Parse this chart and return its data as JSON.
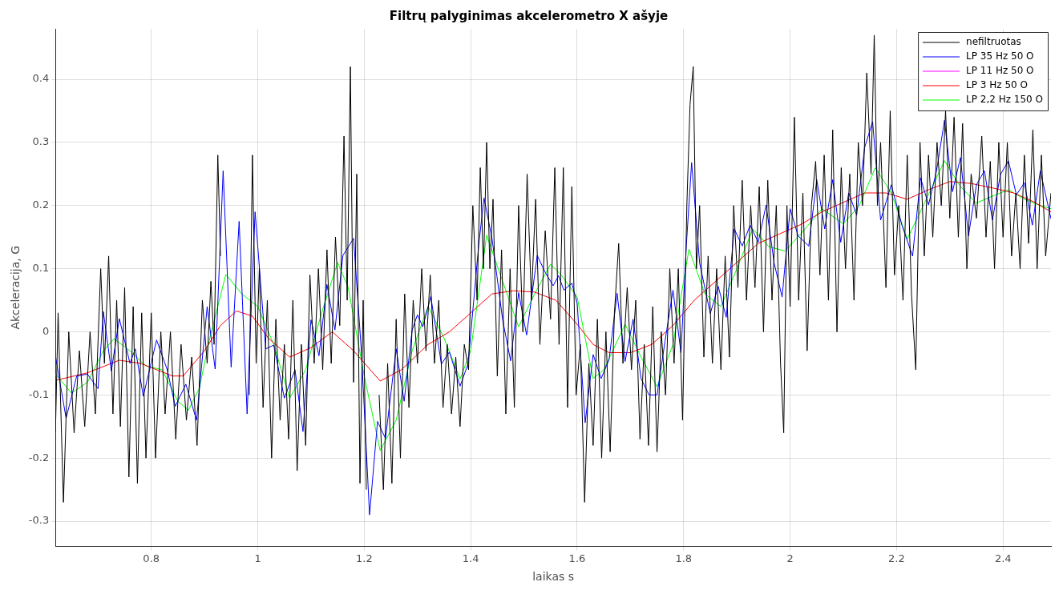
{
  "chart_data": {
    "type": "line",
    "title": "Filtrų palyginimas akcelerometro X ašyje",
    "xlabel": "laikas s",
    "ylabel": "Akceleracija, G",
    "xlim": [
      0.62,
      2.49
    ],
    "ylim": [
      -0.34,
      0.48
    ],
    "xticks": [
      0.8,
      1,
      1.2,
      1.4,
      1.6,
      1.8,
      2,
      2.2,
      2.4
    ],
    "yticks": [
      -0.3,
      -0.2,
      -0.1,
      0,
      0.1,
      0.2,
      0.3,
      0.4
    ],
    "grid": true,
    "legend": "top right",
    "marker": "none",
    "line_style": "solid",
    "series": [
      {
        "name": "nefiltruotas",
        "color": "#000000",
        "x": [
          0.62,
          0.625,
          0.635,
          0.645,
          0.655,
          0.665,
          0.675,
          0.685,
          0.695,
          0.705,
          0.712,
          0.72,
          0.728,
          0.735,
          0.742,
          0.75,
          0.758,
          0.766,
          0.774,
          0.782,
          0.79,
          0.8,
          0.808,
          0.818,
          0.826,
          0.836,
          0.846,
          0.856,
          0.866,
          0.876,
          0.886,
          0.896,
          0.905,
          0.912,
          0.918,
          0.925,
          0.93,
          0.935,
          0.94,
          0.946,
          0.951,
          0.956,
          0.961,
          0.966,
          0.972,
          0.978,
          0.984,
          0.99,
          0.997,
          1.003,
          1.01,
          1.018,
          1.026,
          1.034,
          1.042,
          1.05,
          1.058,
          1.066,
          1.074,
          1.082,
          1.09,
          1.098,
          1.106,
          1.114,
          1.122,
          1.13,
          1.138,
          1.146,
          1.154,
          1.162,
          1.168,
          1.174,
          1.18,
          1.186,
          1.192,
          1.198,
          1.204,
          1.21,
          1.216,
          1.222,
          1.228,
          1.236,
          1.244,
          1.252,
          1.26,
          1.268,
          1.276,
          1.284,
          1.292,
          1.3,
          1.308,
          1.316,
          1.324,
          1.332,
          1.34,
          1.348,
          1.356,
          1.364,
          1.372,
          1.38,
          1.388,
          1.396,
          1.404,
          1.412,
          1.418,
          1.424,
          1.43,
          1.436,
          1.442,
          1.45,
          1.458,
          1.466,
          1.474,
          1.482,
          1.49,
          1.498,
          1.506,
          1.514,
          1.522,
          1.53,
          1.54,
          1.55,
          1.558,
          1.566,
          1.574,
          1.582,
          1.59,
          1.598,
          1.606,
          1.614,
          1.622,
          1.63,
          1.638,
          1.646,
          1.654,
          1.662,
          1.67,
          1.678,
          1.686,
          1.694,
          1.702,
          1.71,
          1.718,
          1.726,
          1.734,
          1.742,
          1.75,
          1.758,
          1.766,
          1.774,
          1.782,
          1.79,
          1.798,
          1.806,
          1.812,
          1.818,
          1.824,
          1.83,
          1.838,
          1.846,
          1.854,
          1.862,
          1.87,
          1.878,
          1.886,
          1.894,
          1.902,
          1.91,
          1.918,
          1.926,
          1.934,
          1.942,
          1.95,
          1.958,
          1.966,
          1.974,
          1.982,
          1.988,
          1.994,
          2.0,
          2.008,
          2.016,
          2.024,
          2.032,
          2.04,
          2.048,
          2.056,
          2.064,
          2.072,
          2.08,
          2.088,
          2.096,
          2.104,
          2.112,
          2.12,
          2.128,
          2.136,
          2.144,
          2.152,
          2.158,
          2.164,
          2.17,
          2.18,
          2.188,
          2.196,
          2.204,
          2.212,
          2.22,
          2.228,
          2.236,
          2.244,
          2.252,
          2.26,
          2.268,
          2.276,
          2.284,
          2.292,
          2.3,
          2.308,
          2.316,
          2.324,
          2.332,
          2.34,
          2.35,
          2.36,
          2.368,
          2.376,
          2.384,
          2.392,
          2.4,
          2.408,
          2.416,
          2.424,
          2.432,
          2.44,
          2.448,
          2.456,
          2.464,
          2.472,
          2.48,
          2.49
        ],
        "values": [
          -0.16,
          0.03,
          -0.27,
          0.0,
          -0.16,
          -0.03,
          -0.15,
          0.0,
          -0.13,
          0.1,
          -0.05,
          0.12,
          -0.13,
          0.05,
          -0.15,
          0.07,
          -0.23,
          0.04,
          -0.24,
          0.03,
          -0.2,
          0.03,
          -0.2,
          0.0,
          -0.13,
          0.0,
          -0.17,
          -0.02,
          -0.14,
          -0.04,
          -0.18,
          0.05,
          -0.05,
          0.08,
          -0.02,
          0.28,
          0.12,
          null,
          null,
          null,
          null,
          null,
          null,
          null,
          null,
          null,
          -0.1,
          0.28,
          -0.05,
          0.1,
          -0.12,
          0.05,
          -0.2,
          0.02,
          -0.14,
          -0.02,
          -0.17,
          0.05,
          -0.22,
          -0.02,
          -0.18,
          0.09,
          -0.05,
          0.1,
          -0.06,
          0.13,
          -0.05,
          0.15,
          0.01,
          0.31,
          0.05,
          0.42,
          -0.08,
          0.25,
          -0.24,
          0.05,
          -0.25,
          null,
          null,
          null,
          -0.1,
          -0.25,
          -0.05,
          -0.24,
          0.02,
          -0.2,
          0.06,
          -0.12,
          0.05,
          -0.05,
          0.1,
          -0.03,
          0.09,
          -0.05,
          0.05,
          -0.12,
          -0.02,
          -0.13,
          -0.04,
          -0.15,
          -0.02,
          -0.06,
          0.2,
          0.05,
          0.26,
          0.1,
          0.3,
          0.1,
          0.21,
          -0.07,
          0.13,
          -0.13,
          0.1,
          -0.12,
          0.2,
          0.0,
          0.25,
          0.05,
          0.21,
          -0.02,
          0.16,
          0.02,
          0.26,
          -0.02,
          0.26,
          -0.12,
          0.23,
          -0.1,
          -0.02,
          -0.27,
          -0.05,
          -0.18,
          0.02,
          -0.2,
          0.0,
          -0.19,
          0.03,
          0.14,
          -0.05,
          0.07,
          -0.06,
          0.05,
          -0.17,
          -0.02,
          -0.18,
          0.04,
          -0.19,
          0.0,
          -0.1,
          0.1,
          -0.05,
          0.1,
          -0.14,
          0.2,
          0.36,
          0.42,
          0.1,
          0.2,
          -0.04,
          0.12,
          -0.05,
          0.1,
          -0.06,
          0.12,
          -0.04,
          0.2,
          0.07,
          0.24,
          0.05,
          0.2,
          0.07,
          0.23,
          0.0,
          0.24,
          0.05,
          0.2,
          -0.05,
          -0.16,
          0.2,
          0.04,
          0.34,
          0.05,
          0.22,
          -0.03,
          0.2,
          0.27,
          0.09,
          0.28,
          0.05,
          0.32,
          0.0,
          0.26,
          0.1,
          0.25,
          0.05,
          0.3,
          0.2,
          0.41,
          0.25,
          0.47,
          0.2,
          0.3,
          0.07,
          0.35,
          0.09,
          0.2,
          0.05,
          0.28,
          0.06,
          -0.06,
          0.3,
          0.12,
          0.28,
          0.15,
          0.3,
          0.2,
          0.35,
          0.18,
          0.34,
          0.15,
          0.33,
          0.1,
          0.25,
          0.18,
          0.31,
          0.15,
          0.27,
          0.1,
          0.3,
          0.15,
          0.3,
          0.12,
          0.22,
          0.1,
          0.28,
          0.14,
          0.32,
          0.1,
          0.28,
          0.12,
          0.22
        ]
      },
      {
        "name": "LP 35 Hz 50 O",
        "color": "#0000ff",
        "x": [
          0.62,
          0.64,
          0.66,
          0.68,
          0.7,
          0.71,
          0.725,
          0.74,
          0.76,
          0.77,
          0.785,
          0.81,
          0.83,
          0.845,
          0.865,
          0.885,
          0.905,
          0.92,
          0.935,
          0.95,
          0.965,
          0.98,
          0.995,
          1.015,
          1.03,
          1.05,
          1.07,
          1.085,
          1.1,
          1.115,
          1.13,
          1.145,
          1.16,
          1.18,
          1.195,
          1.21,
          1.225,
          1.24,
          1.26,
          1.275,
          1.29,
          1.3,
          1.31,
          1.325,
          1.345,
          1.36,
          1.38,
          1.395,
          1.415,
          1.425,
          1.44,
          1.46,
          1.475,
          1.49,
          1.505,
          1.525,
          1.54,
          1.555,
          1.565,
          1.575,
          1.59,
          1.6,
          1.615,
          1.63,
          1.645,
          1.66,
          1.675,
          1.69,
          1.705,
          1.72,
          1.735,
          1.75,
          1.765,
          1.78,
          1.795,
          1.805,
          1.815,
          1.83,
          1.85,
          1.865,
          1.88,
          1.895,
          1.91,
          1.925,
          1.94,
          1.955,
          1.97,
          1.985,
          2.0,
          2.015,
          2.035,
          2.05,
          2.065,
          2.08,
          2.095,
          2.11,
          2.125,
          2.14,
          2.155,
          2.17,
          2.19,
          2.21,
          2.23,
          2.245,
          2.26,
          2.275,
          2.29,
          2.305,
          2.32,
          2.335,
          2.35,
          2.365,
          2.38,
          2.395,
          2.41,
          2.425,
          2.44,
          2.455,
          2.47,
          2.49
        ],
        "values": [
          -0.038,
          -0.137,
          -0.07,
          -0.067,
          -0.09,
          0.032,
          -0.062,
          0.021,
          -0.05,
          -0.027,
          -0.102,
          -0.013,
          -0.06,
          -0.118,
          -0.083,
          -0.14,
          0.04,
          -0.059,
          0.255,
          -0.056,
          0.175,
          -0.13,
          0.19,
          -0.027,
          -0.021,
          -0.105,
          -0.06,
          -0.158,
          0.019,
          -0.038,
          0.075,
          0.003,
          0.121,
          0.148,
          -0.035,
          -0.29,
          -0.142,
          -0.169,
          -0.027,
          -0.11,
          0.003,
          0.027,
          0.008,
          0.056,
          -0.051,
          -0.032,
          -0.086,
          -0.051,
          0.137,
          0.212,
          0.148,
          0.019,
          -0.046,
          0.062,
          -0.005,
          0.121,
          0.094,
          0.073,
          0.089,
          0.066,
          0.077,
          0.045,
          -0.144,
          -0.036,
          -0.074,
          -0.044,
          0.061,
          -0.047,
          0.02,
          -0.074,
          -0.1,
          -0.1,
          -0.015,
          0.066,
          -0.033,
          0.136,
          0.268,
          0.109,
          0.029,
          0.072,
          0.023,
          0.163,
          0.136,
          0.169,
          0.142,
          0.201,
          0.109,
          0.055,
          0.195,
          0.152,
          0.136,
          0.241,
          0.163,
          0.241,
          0.142,
          0.22,
          0.185,
          0.292,
          0.333,
          0.177,
          0.233,
          0.169,
          0.12,
          0.244,
          0.201,
          0.255,
          0.335,
          0.222,
          0.276,
          0.152,
          0.233,
          0.255,
          0.177,
          0.249,
          0.271,
          0.217,
          0.236,
          0.169,
          0.255,
          0.179
        ]
      },
      {
        "name": "LP 11 Hz 50 O",
        "color": "#ff00ff"
      },
      {
        "name": "LP 3 Hz 50 O",
        "color": "#ff0000",
        "x": [
          0.62,
          0.68,
          0.74,
          0.78,
          0.84,
          0.86,
          0.9,
          0.93,
          0.96,
          0.99,
          1.02,
          1.06,
          1.1,
          1.14,
          1.18,
          1.23,
          1.27,
          1.32,
          1.36,
          1.4,
          1.44,
          1.48,
          1.52,
          1.56,
          1.6,
          1.63,
          1.66,
          1.7,
          1.74,
          1.78,
          1.82,
          1.86,
          1.9,
          1.94,
          1.98,
          2.02,
          2.06,
          2.1,
          2.14,
          2.18,
          2.22,
          2.26,
          2.3,
          2.34,
          2.38,
          2.42,
          2.46,
          2.49
        ],
        "values": [
          -0.077,
          -0.065,
          -0.045,
          -0.05,
          -0.07,
          -0.07,
          -0.03,
          0.01,
          0.033,
          0.025,
          -0.01,
          -0.04,
          -0.025,
          0,
          -0.03,
          -0.078,
          -0.06,
          -0.02,
          0,
          0.03,
          0.06,
          0.065,
          0.063,
          0.05,
          0.012,
          -0.02,
          -0.033,
          -0.033,
          -0.02,
          0.01,
          0.05,
          0.08,
          0.11,
          0.14,
          0.155,
          0.17,
          0.19,
          0.205,
          0.22,
          0.22,
          0.21,
          0.225,
          0.238,
          0.235,
          0.228,
          0.22,
          0.205,
          0.19
        ]
      },
      {
        "name": "LP 2,2 Hz 150 O",
        "color": "#00ff00",
        "x": [
          0.62,
          0.65,
          0.68,
          0.71,
          0.73,
          0.76,
          0.79,
          0.82,
          0.85,
          0.87,
          0.89,
          0.91,
          0.94,
          0.97,
          1.0,
          1.03,
          1.06,
          1.09,
          1.12,
          1.15,
          1.17,
          1.2,
          1.23,
          1.26,
          1.29,
          1.32,
          1.35,
          1.38,
          1.4,
          1.43,
          1.46,
          1.49,
          1.52,
          1.55,
          1.57,
          1.6,
          1.63,
          1.65,
          1.69,
          1.72,
          1.75,
          1.78,
          1.81,
          1.84,
          1.87,
          1.9,
          1.93,
          1.96,
          1.99,
          2.02,
          2.06,
          2.1,
          2.13,
          2.16,
          2.19,
          2.22,
          2.25,
          2.29,
          2.32,
          2.35,
          2.38,
          2.41,
          2.44,
          2.47,
          2.49
        ],
        "values": [
          -0.067,
          -0.097,
          -0.08,
          -0.03,
          -0.011,
          -0.03,
          -0.054,
          -0.06,
          -0.11,
          -0.124,
          -0.09,
          -0.01,
          0.091,
          0.06,
          0.04,
          -0.02,
          -0.105,
          -0.06,
          0.03,
          0.11,
          0.07,
          -0.07,
          -0.188,
          -0.14,
          -0.03,
          0.04,
          -0.01,
          -0.075,
          -0.03,
          0.153,
          0.08,
          0.008,
          0.06,
          0.107,
          0.09,
          0.055,
          -0.074,
          -0.06,
          0.012,
          -0.04,
          -0.087,
          -0.02,
          0.131,
          0.06,
          0.04,
          0.1,
          0.163,
          0.135,
          0.128,
          0.155,
          0.195,
          0.171,
          0.2,
          0.26,
          0.22,
          0.147,
          0.2,
          0.271,
          0.23,
          0.204,
          0.215,
          0.225,
          0.21,
          0.2,
          0.195
        ]
      }
    ]
  }
}
